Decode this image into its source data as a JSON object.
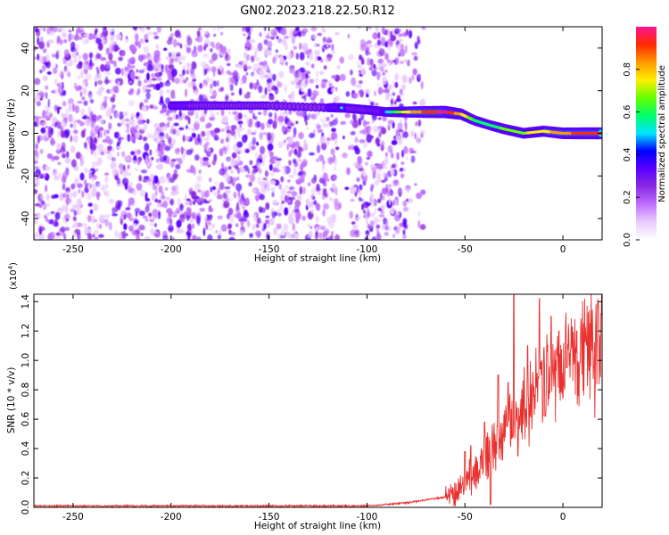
{
  "figure": {
    "title": "GN02.2023.218.22.50.R12"
  },
  "colors": {
    "snr_line": "#e8312e",
    "axis": "#000000",
    "colormap": [
      "#ffffff",
      "#e9ccff",
      "#c070ff",
      "#8a2be2",
      "#5a00ff",
      "#0000ff",
      "#00e5ff",
      "#00ff6a",
      "#66ff00",
      "#ffee00",
      "#ff9800",
      "#ff2a00",
      "#ff1493"
    ]
  },
  "chart_data": [
    {
      "type": "heatmap",
      "xlabel": "Height of straight line (km)",
      "ylabel": "Frequency (Hz)",
      "xlim": [
        -270,
        20
      ],
      "ylim": [
        -50,
        50
      ],
      "xticks": [
        -250,
        -200,
        -150,
        -100,
        -50,
        0
      ],
      "yticks": [
        -40,
        -20,
        0,
        20,
        40
      ],
      "colorbar": {
        "label": "Normalized spectral amplitude",
        "range": [
          0.0,
          1.0
        ],
        "ticks": [
          "0.0",
          "0.2",
          "0.4",
          "0.6",
          "0.8"
        ]
      },
      "noise_region_x": [
        -270,
        -80
      ],
      "noise_gap_x": [
        -115,
        -108
      ],
      "ridge": [
        {
          "x": -200,
          "y": 13,
          "amp": 0.35
        },
        {
          "x": -190,
          "y": 13,
          "amp": 0.4
        },
        {
          "x": -170,
          "y": 13,
          "amp": 0.3
        },
        {
          "x": -150,
          "y": 13,
          "amp": 0.3
        },
        {
          "x": -120,
          "y": 12,
          "amp": 0.35
        },
        {
          "x": -113,
          "y": 12,
          "amp": 0.5
        },
        {
          "x": -100,
          "y": 11,
          "amp": 0.45
        },
        {
          "x": -90,
          "y": 10,
          "amp": 0.5
        },
        {
          "x": -80,
          "y": 10,
          "amp": 0.75
        },
        {
          "x": -70,
          "y": 10,
          "amp": 0.9
        },
        {
          "x": -60,
          "y": 10,
          "amp": 1.0
        },
        {
          "x": -52,
          "y": 9,
          "amp": 0.8
        },
        {
          "x": -45,
          "y": 6,
          "amp": 0.6
        },
        {
          "x": -38,
          "y": 4,
          "amp": 0.55
        },
        {
          "x": -30,
          "y": 2,
          "amp": 0.65
        },
        {
          "x": -20,
          "y": 0,
          "amp": 0.7
        },
        {
          "x": -10,
          "y": 1,
          "amp": 0.75
        },
        {
          "x": 0,
          "y": 0,
          "amp": 0.85
        },
        {
          "x": 10,
          "y": 0,
          "amp": 0.9
        },
        {
          "x": 20,
          "y": 0,
          "amp": 0.9
        }
      ]
    },
    {
      "type": "line",
      "xlabel": "Height of straight line (km)",
      "ylabel": "SNR (10 * v/v)",
      "y_multiplier": "(x10",
      "y_exponent": "4",
      "xlim": [
        -270,
        20
      ],
      "ylim": [
        0,
        1.45
      ],
      "xticks": [
        -250,
        -200,
        -150,
        -100,
        -50,
        0
      ],
      "yticks": [
        "0.0",
        "0.2",
        "0.4",
        "0.6",
        "0.8",
        "1.0",
        "1.2",
        "1.4"
      ],
      "series": [
        {
          "trend_x": [
            -270,
            -100,
            -80,
            -70,
            -60,
            -55,
            -50,
            -45,
            -40,
            -35,
            -30,
            -25,
            -20,
            -15,
            -10,
            -5,
            0,
            5,
            10,
            15,
            20
          ],
          "trend_y": [
            0.01,
            0.01,
            0.03,
            0.05,
            0.07,
            0.1,
            0.17,
            0.24,
            0.32,
            0.42,
            0.5,
            0.6,
            0.68,
            0.78,
            0.86,
            0.95,
            1.0,
            1.03,
            1.06,
            1.07,
            1.08
          ],
          "spikes": [
            {
              "x": -50,
              "y": 0.38
            },
            {
              "x": -47,
              "y": 0.42
            },
            {
              "x": -40,
              "y": 0.58
            },
            {
              "x": -37,
              "y": 0.02
            },
            {
              "x": -33,
              "y": 0.9
            },
            {
              "x": -28,
              "y": 0.85
            },
            {
              "x": -25,
              "y": 1.46
            },
            {
              "x": -23,
              "y": 0.35
            },
            {
              "x": -18,
              "y": 1.1
            },
            {
              "x": -12,
              "y": 1.42
            },
            {
              "x": -9,
              "y": 0.62
            },
            {
              "x": -6,
              "y": 1.3
            },
            {
              "x": -2,
              "y": 1.2
            },
            {
              "x": 2,
              "y": 0.95
            },
            {
              "x": 7,
              "y": 1.2
            }
          ]
        }
      ]
    }
  ]
}
